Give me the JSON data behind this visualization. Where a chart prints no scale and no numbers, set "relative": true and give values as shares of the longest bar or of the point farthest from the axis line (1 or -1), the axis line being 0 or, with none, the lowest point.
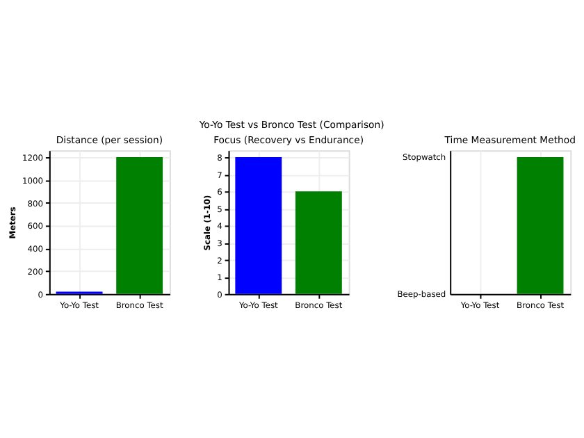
{
  "chart_data": [
    {
      "type": "other",
      "title": "Yo-Yo Test vs Bronco Test (Comparison)"
    },
    {
      "type": "bar",
      "title": "Distance (per session)",
      "ylabel": "Meters",
      "categories": [
        "Yo-Yo Test",
        "Bronco Test"
      ],
      "values": [
        20,
        1200
      ],
      "colors": [
        "#0000ff",
        "#008000"
      ],
      "ylim": [
        0,
        1260
      ],
      "yticks": [
        0,
        200,
        400,
        600,
        800,
        1000,
        1200
      ],
      "grid": true
    },
    {
      "type": "bar",
      "title": "Focus (Recovery vs Endurance)",
      "ylabel": "Scale (1-10)",
      "categories": [
        "Yo-Yo Test",
        "Bronco Test"
      ],
      "values": [
        8,
        6
      ],
      "colors": [
        "#0000ff",
        "#008000"
      ],
      "ylim": [
        0,
        8.4
      ],
      "yticks": [
        0,
        1,
        2,
        3,
        4,
        5,
        6,
        7,
        8
      ],
      "grid": true
    },
    {
      "type": "bar",
      "title": "Time Measurement Method",
      "categories": [
        "Yo-Yo Test",
        "Bronco Test"
      ],
      "values": [
        0,
        1
      ],
      "colors": [
        "#0000ff",
        "#008000"
      ],
      "relative": true,
      "annotations": [
        "Beep-based",
        "Stopwatch"
      ],
      "grid": true
    }
  ]
}
